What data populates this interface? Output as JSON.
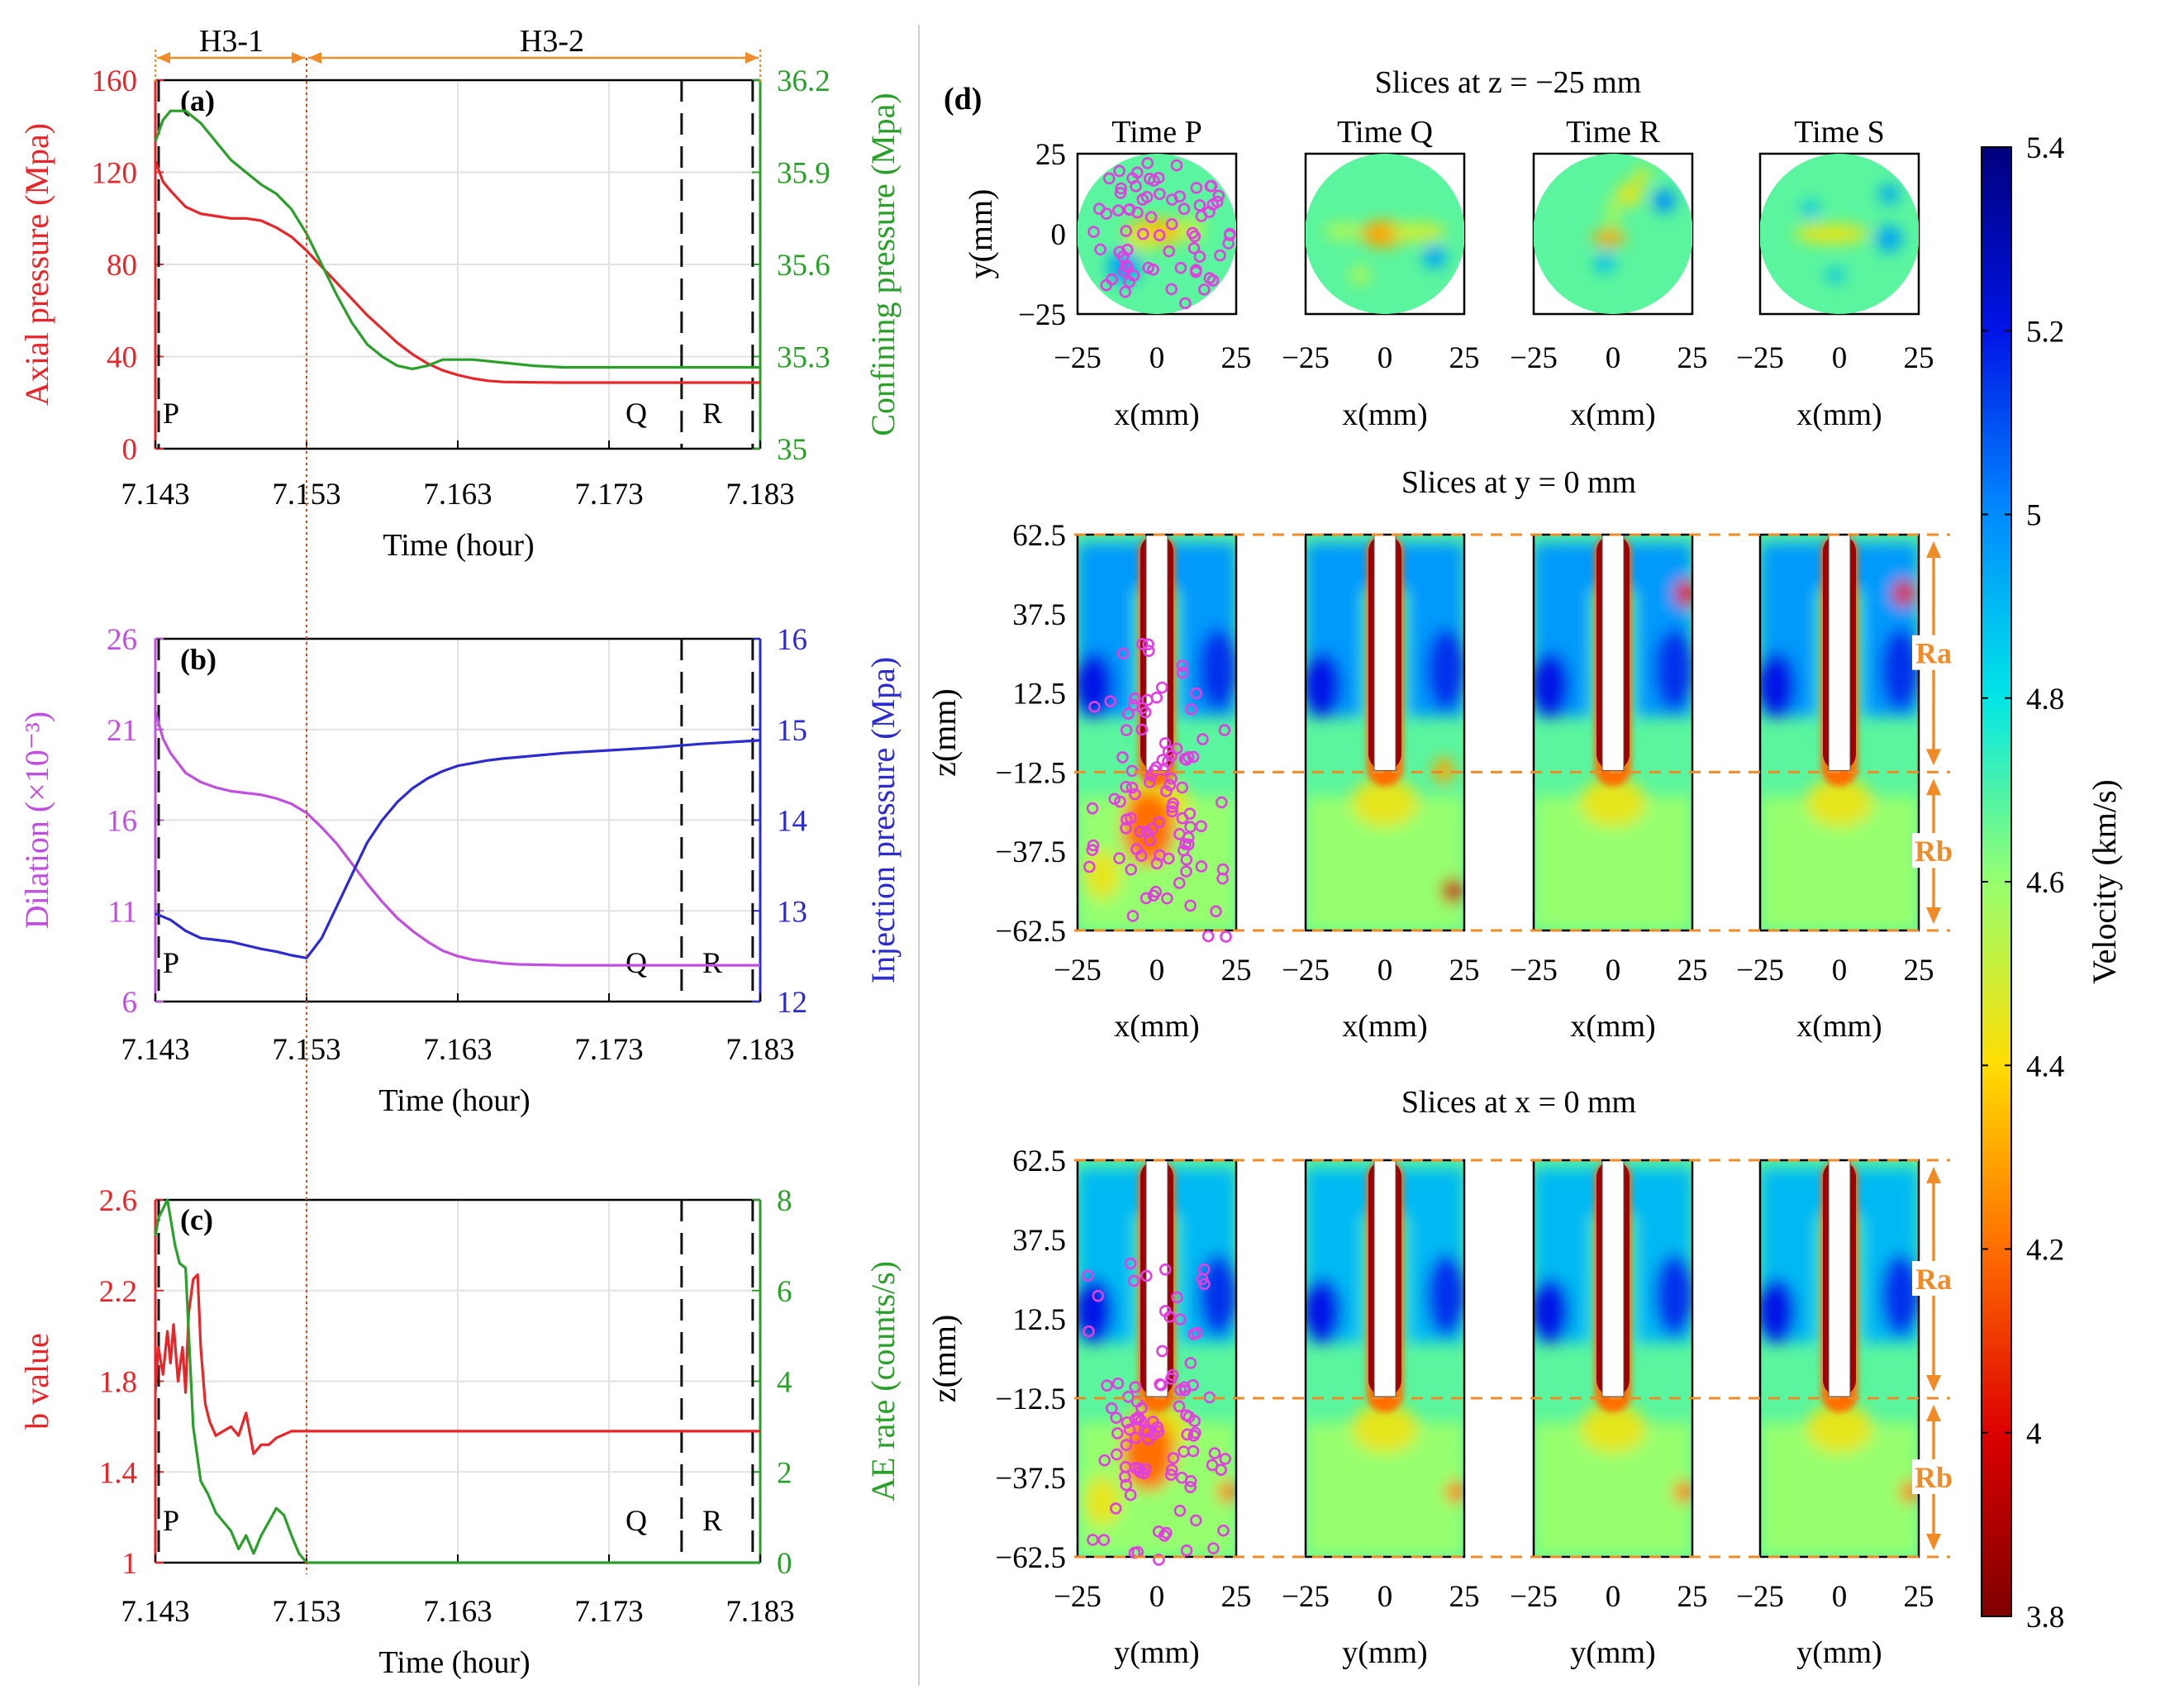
{
  "colors": {
    "axial": "#e8262a",
    "confining": "#2aa02a",
    "dilation": "#c04fe0",
    "injection": "#2b2bcf",
    "bvalue": "#e8262a",
    "ae": "#2aa02a",
    "orange": "#f08c28",
    "aeEvents": "#e040e0",
    "dashed": "#111111"
  },
  "phases": {
    "h31": "H3-1",
    "h32": "H3-2"
  },
  "panelA": {
    "label": "(a)",
    "ylabel_left": "Axial pressure  (Mpa)",
    "ylabel_right": "Confining pressure (Mpa)",
    "xlabel": "Time (hour)",
    "ylim_left": [
      0,
      160
    ],
    "ylim_right": [
      35,
      36.2
    ],
    "yticks_left": [
      "0",
      "40",
      "80",
      "120",
      "160"
    ],
    "yticks_right": [
      "35",
      "35.3",
      "35.6",
      "35.9",
      "36.2"
    ],
    "markers": {
      "P": "P",
      "Q": "Q",
      "R": "R"
    }
  },
  "panelB": {
    "label": "(b)",
    "ylabel_left": "Dilation  (×10⁻³)",
    "ylabel_right": "Injection pressure (Mpa)",
    "xlabel": "Time (hour)",
    "ylim_left": [
      6,
      26
    ],
    "ylim_right": [
      12,
      16
    ],
    "yticks_left": [
      "6",
      "11",
      "16",
      "21",
      "26"
    ],
    "yticks_right": [
      "12",
      "13",
      "14",
      "15",
      "16"
    ],
    "markers": {
      "P": "P",
      "Q": "Q",
      "R": "R"
    }
  },
  "panelC": {
    "label": "(c)",
    "ylabel_left": "b value",
    "ylabel_right": "AE rate (counts/s)",
    "xlabel": "Time (hour)",
    "ylim_left": [
      1,
      2.6
    ],
    "ylim_right": [
      0,
      8
    ],
    "yticks_left": [
      "1",
      "1.4",
      "1.8",
      "2.2",
      "2.6"
    ],
    "yticks_right": [
      "0",
      "2",
      "4",
      "6",
      "8"
    ],
    "markers": {
      "P": "P",
      "Q": "Q",
      "R": "R"
    }
  },
  "xticks": [
    "7.143",
    "7.153",
    "7.163",
    "7.173",
    "7.183"
  ],
  "panelD": {
    "label": "(d)",
    "row1_title": "Slices at z = −25 mm",
    "row2_title": "Slices at y = 0 mm",
    "row3_title": "Slices at x = 0 mm",
    "times": [
      "Time P",
      "Time Q",
      "Time R",
      "Time S"
    ],
    "row1_ylabel": "y(mm)",
    "row1_yticks": [
      "25",
      "0",
      "−25"
    ],
    "z_ylabel": "z(mm)",
    "z_yticks": [
      "62.5",
      "37.5",
      "12.5",
      "−12.5",
      "−37.5",
      "−62.5"
    ],
    "hticks": [
      "−25",
      "0",
      "25"
    ],
    "row1_xlabel": "x(mm)",
    "row2_xlabel": "x(mm)",
    "row3_xlabel": "y(mm)",
    "region_a": "Ra",
    "region_b": "Rb"
  },
  "colorbar": {
    "label": "Velocity  (km/s)",
    "ticks": [
      "5.4",
      "5.2",
      "5",
      "4.8",
      "4.6",
      "4.4",
      "4.2",
      "4",
      "3.8"
    ],
    "range": [
      3.8,
      5.4
    ]
  },
  "chart_data": [
    {
      "type": "line",
      "panel": "a",
      "title": "(a)",
      "xlabel": "Time (hour)",
      "xlim": [
        7.143,
        7.183
      ],
      "series": [
        {
          "name": "Axial pressure",
          "axis": "left",
          "x": [
            7.143,
            7.1435,
            7.144,
            7.145,
            7.146,
            7.147,
            7.148,
            7.149,
            7.15,
            7.151,
            7.152,
            7.153,
            7.154,
            7.155,
            7.156,
            7.157,
            7.158,
            7.159,
            7.16,
            7.161,
            7.162,
            7.163,
            7.164,
            7.165,
            7.166,
            7.168,
            7.17,
            7.175,
            7.18,
            7.183
          ],
          "values": [
            125,
            116,
            112,
            105,
            102,
            101,
            100,
            100,
            99,
            96,
            92,
            86,
            79,
            72,
            65,
            58,
            52,
            46,
            41,
            37,
            34,
            32,
            30.5,
            29.5,
            29,
            28.8,
            28.7,
            28.7,
            28.7,
            28.7
          ]
        },
        {
          "name": "Confining pressure",
          "axis": "right",
          "x": [
            7.143,
            7.1435,
            7.144,
            7.145,
            7.146,
            7.147,
            7.148,
            7.149,
            7.15,
            7.151,
            7.152,
            7.153,
            7.154,
            7.155,
            7.156,
            7.157,
            7.158,
            7.159,
            7.16,
            7.161,
            7.162,
            7.163,
            7.164,
            7.166,
            7.168,
            7.17,
            7.175,
            7.183
          ],
          "values": [
            36.0,
            36.07,
            36.1,
            36.1,
            36.06,
            36.0,
            35.94,
            35.9,
            35.86,
            35.83,
            35.78,
            35.7,
            35.6,
            35.5,
            35.41,
            35.34,
            35.3,
            35.27,
            35.26,
            35.27,
            35.29,
            35.29,
            35.29,
            35.28,
            35.27,
            35.265,
            35.265,
            35.265
          ]
        }
      ],
      "markers": [
        {
          "label": "P",
          "x": 7.143
        },
        {
          "label": "Q",
          "x": 7.1778
        },
        {
          "label": "R",
          "x": 7.1825
        }
      ],
      "phase_boundary": 7.153
    },
    {
      "type": "line",
      "panel": "b",
      "title": "(b)",
      "xlabel": "Time (hour)",
      "xlim": [
        7.143,
        7.183
      ],
      "series": [
        {
          "name": "Dilation",
          "axis": "left",
          "x": [
            7.143,
            7.1435,
            7.144,
            7.145,
            7.146,
            7.147,
            7.148,
            7.149,
            7.15,
            7.151,
            7.152,
            7.153,
            7.154,
            7.155,
            7.156,
            7.157,
            7.158,
            7.159,
            7.16,
            7.161,
            7.162,
            7.163,
            7.164,
            7.165,
            7.166,
            7.167,
            7.17,
            7.175,
            7.18,
            7.183
          ],
          "values": [
            22,
            20.5,
            19.7,
            18.6,
            18.1,
            17.8,
            17.6,
            17.5,
            17.4,
            17.2,
            16.9,
            16.4,
            15.6,
            14.7,
            13.6,
            12.5,
            11.5,
            10.6,
            9.9,
            9.3,
            8.8,
            8.5,
            8.3,
            8.2,
            8.1,
            8.05,
            8.0,
            8.0,
            8.0,
            8.0
          ]
        },
        {
          "name": "Injection pressure",
          "axis": "right",
          "x": [
            7.143,
            7.144,
            7.145,
            7.146,
            7.147,
            7.148,
            7.149,
            7.15,
            7.151,
            7.152,
            7.153,
            7.154,
            7.155,
            7.156,
            7.157,
            7.158,
            7.159,
            7.16,
            7.161,
            7.162,
            7.163,
            7.164,
            7.165,
            7.166,
            7.168,
            7.17,
            7.173,
            7.176,
            7.179,
            7.183
          ],
          "values": [
            12.97,
            12.9,
            12.78,
            12.7,
            12.68,
            12.66,
            12.62,
            12.58,
            12.55,
            12.51,
            12.48,
            12.7,
            13.05,
            13.4,
            13.75,
            14.0,
            14.2,
            14.35,
            14.46,
            14.54,
            14.6,
            14.63,
            14.66,
            14.68,
            14.71,
            14.74,
            14.77,
            14.8,
            14.84,
            14.88
          ]
        }
      ],
      "markers": [
        {
          "label": "P",
          "x": 7.143
        },
        {
          "label": "Q",
          "x": 7.1778
        },
        {
          "label": "R",
          "x": 7.1825
        }
      ],
      "phase_boundary": 7.153
    },
    {
      "type": "line",
      "panel": "c",
      "title": "(c)",
      "xlabel": "Time (hour)",
      "xlim": [
        7.143,
        7.183
      ],
      "series": [
        {
          "name": "b value",
          "axis": "left",
          "x": [
            7.143,
            7.1432,
            7.1435,
            7.1438,
            7.144,
            7.1442,
            7.1445,
            7.1448,
            7.145,
            7.1452,
            7.1455,
            7.1458,
            7.146,
            7.1463,
            7.1466,
            7.147,
            7.148,
            7.1485,
            7.149,
            7.1495,
            7.15,
            7.1505,
            7.151,
            7.152,
            7.153,
            7.16,
            7.17,
            7.183
          ],
          "values": [
            1.75,
            1.95,
            1.83,
            2.02,
            1.88,
            2.05,
            1.8,
            1.95,
            1.75,
            2.1,
            2.25,
            2.27,
            1.95,
            1.7,
            1.62,
            1.56,
            1.6,
            1.56,
            1.66,
            1.48,
            1.52,
            1.52,
            1.55,
            1.58,
            1.58,
            1.58,
            1.58,
            1.58
          ]
        },
        {
          "name": "AE rate",
          "axis": "right",
          "x": [
            7.143,
            7.1432,
            7.1435,
            7.1438,
            7.144,
            7.1443,
            7.1446,
            7.145,
            7.1455,
            7.146,
            7.1465,
            7.147,
            7.1475,
            7.148,
            7.1485,
            7.149,
            7.1495,
            7.15,
            7.1505,
            7.151,
            7.1515,
            7.152,
            7.1525,
            7.153,
            7.16,
            7.17,
            7.183
          ],
          "values": [
            7.2,
            7.6,
            7.8,
            8.0,
            7.6,
            7.0,
            6.6,
            6.5,
            3.0,
            1.8,
            1.5,
            1.1,
            0.9,
            0.7,
            0.3,
            0.6,
            0.2,
            0.6,
            0.9,
            1.2,
            1.05,
            0.6,
            0.2,
            0.0,
            0.0,
            0.0,
            0.0
          ]
        }
      ],
      "markers": [
        {
          "label": "P",
          "x": 7.143
        },
        {
          "label": "Q",
          "x": 7.1778
        },
        {
          "label": "R",
          "x": 7.1825
        }
      ],
      "phase_boundary": 7.153
    },
    {
      "type": "heatmap",
      "panel": "d",
      "title": "(d)",
      "colorbar": {
        "label": "Velocity  (km/s)",
        "range": [
          3.8,
          5.4
        ]
      },
      "rows": [
        {
          "title": "Slices at z = −25 mm",
          "xlabel": "x(mm)",
          "ylabel": "y(mm)",
          "xlim": [
            -25,
            25
          ],
          "ylim": [
            -25,
            25
          ]
        },
        {
          "title": "Slices at y = 0 mm",
          "xlabel": "x(mm)",
          "ylabel": "z(mm)",
          "xlim": [
            -25,
            25
          ],
          "ylim": [
            -62.5,
            62.5
          ]
        },
        {
          "title": "Slices at x = 0 mm",
          "xlabel": "y(mm)",
          "ylabel": "z(mm)",
          "xlim": [
            -25,
            25
          ],
          "ylim": [
            -62.5,
            62.5
          ]
        }
      ],
      "columns": [
        "Time P",
        "Time Q",
        "Time R",
        "Time S"
      ],
      "regions": [
        {
          "name": "Ra",
          "z": [
            -12.5,
            62.5
          ]
        },
        {
          "name": "Rb",
          "z": [
            -62.5,
            -12.5
          ]
        }
      ]
    }
  ]
}
